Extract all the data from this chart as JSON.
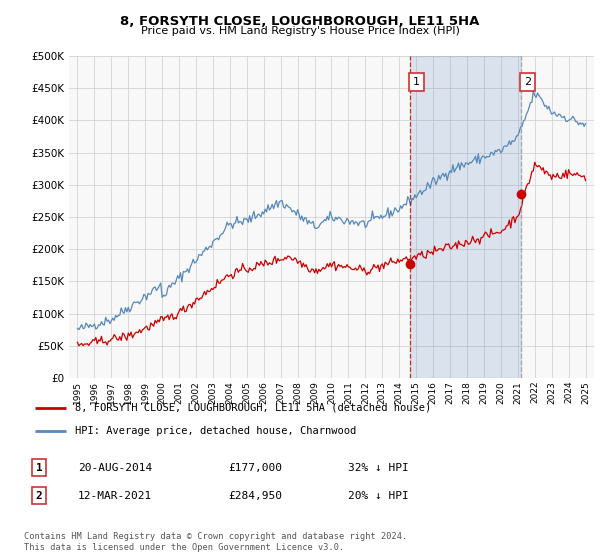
{
  "title": "8, FORSYTH CLOSE, LOUGHBOROUGH, LE11 5HA",
  "subtitle": "Price paid vs. HM Land Registry's House Price Index (HPI)",
  "ylabel_ticks": [
    "£0",
    "£50K",
    "£100K",
    "£150K",
    "£200K",
    "£250K",
    "£300K",
    "£350K",
    "£400K",
    "£450K",
    "£500K"
  ],
  "ytick_values": [
    0,
    50000,
    100000,
    150000,
    200000,
    250000,
    300000,
    350000,
    400000,
    450000,
    500000
  ],
  "xlim_start": 1994.5,
  "xlim_end": 2025.5,
  "ylim": [
    0,
    500000
  ],
  "hpi_color": "#5588bb",
  "price_color": "#cc0000",
  "shade_color": "#ddeeff",
  "vline1_color": "#cc0000",
  "vline2_color": "#999999",
  "grid_color": "#cccccc",
  "bg_color": "#ffffff",
  "plot_bg_color": "#f8f8f8",
  "sale1_x": 2014.63,
  "sale1_y": 177000,
  "sale2_x": 2021.19,
  "sale2_y": 284950,
  "legend_red_label": "8, FORSYTH CLOSE, LOUGHBOROUGH, LE11 5HA (detached house)",
  "legend_blue_label": "HPI: Average price, detached house, Charnwood",
  "table_rows": [
    {
      "num": "1",
      "date": "20-AUG-2014",
      "price": "£177,000",
      "pct": "32% ↓ HPI"
    },
    {
      "num": "2",
      "date": "12-MAR-2021",
      "price": "£284,950",
      "pct": "20% ↓ HPI"
    }
  ],
  "footer": "Contains HM Land Registry data © Crown copyright and database right 2024.\nThis data is licensed under the Open Government Licence v3.0."
}
